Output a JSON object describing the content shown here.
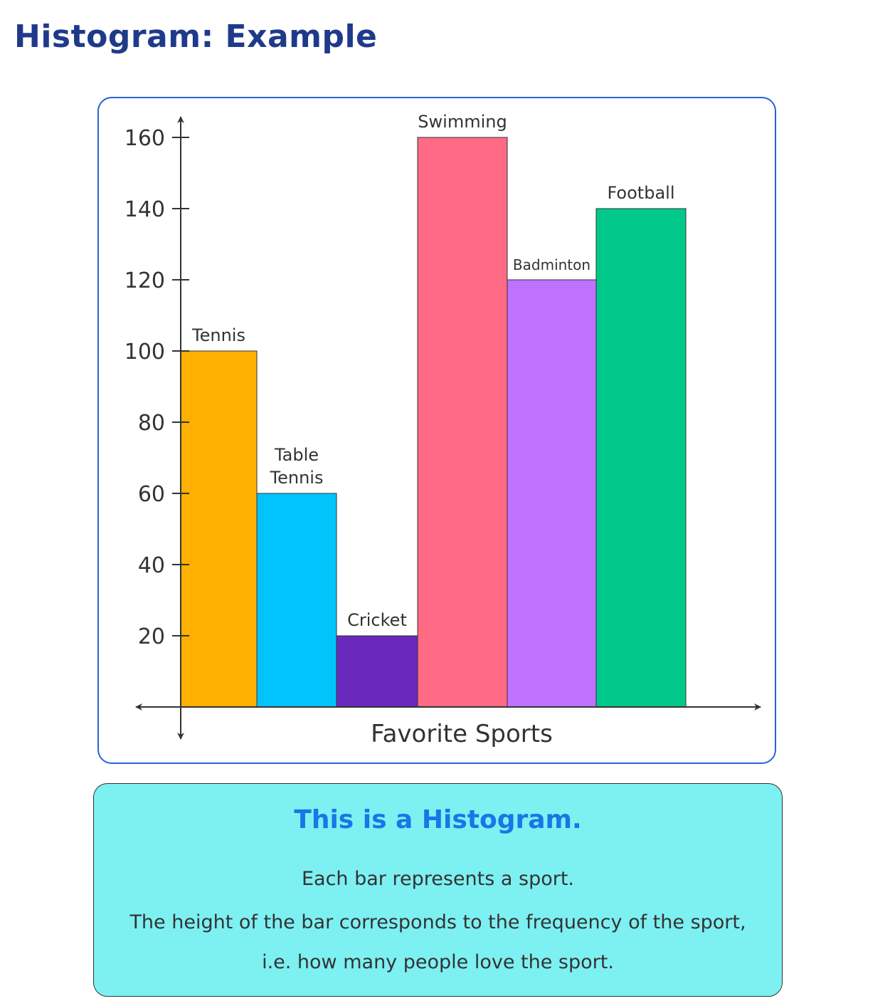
{
  "heading": "Histogram: Example",
  "chart_data": {
    "type": "bar",
    "categories": [
      "Tennis",
      "Table Tennis",
      "Cricket",
      "Swimming",
      "Badminton",
      "Football"
    ],
    "category_lines": [
      [
        "Tennis"
      ],
      [
        "Table",
        "Tennis"
      ],
      [
        "Cricket"
      ],
      [
        "Swimming"
      ],
      [
        "Badminton"
      ],
      [
        "Football"
      ]
    ],
    "values": [
      100,
      60,
      20,
      160,
      120,
      140
    ],
    "colors": [
      "#ffb000",
      "#00c4fb",
      "#6a28bd",
      "#ff6a84",
      "#bf72ff",
      "#00c98b"
    ],
    "title": "",
    "xlabel": "Favorite Sports",
    "ylabel": "",
    "yticks": [
      20,
      40,
      60,
      80,
      100,
      120,
      140,
      160
    ],
    "ylim": [
      0,
      160
    ],
    "grid": false
  },
  "info": {
    "title": "This is a Histogram.",
    "lines": [
      "Each bar represents a sport.",
      "The height of the bar corresponds to the frequency of the sport,",
      "i.e. how many people love the sport."
    ]
  }
}
